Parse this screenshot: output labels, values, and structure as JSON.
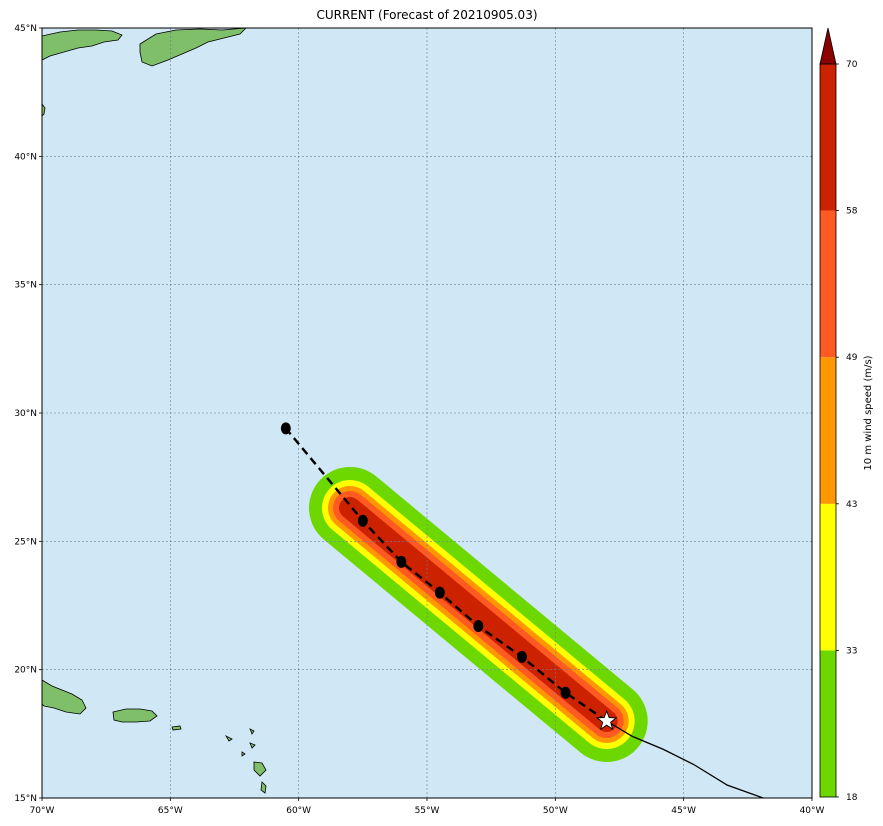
{
  "chart_data": {
    "type": "map",
    "title": "CURRENT (Forecast of 20210905.03)",
    "lon_range": [
      -70,
      -40
    ],
    "lat_range": [
      15,
      45
    ],
    "x_ticks": [
      {
        "v": -70,
        "label": "70°W"
      },
      {
        "v": -65,
        "label": "65°W"
      },
      {
        "v": -60,
        "label": "60°W"
      },
      {
        "v": -55,
        "label": "55°W"
      },
      {
        "v": -50,
        "label": "50°W"
      },
      {
        "v": -45,
        "label": "45°W"
      },
      {
        "v": -40,
        "label": "40°W"
      }
    ],
    "y_ticks": [
      {
        "v": 15,
        "label": "15°N"
      },
      {
        "v": 20,
        "label": "20°N"
      },
      {
        "v": 25,
        "label": "25°N"
      },
      {
        "v": 30,
        "label": "30°N"
      },
      {
        "v": 35,
        "label": "35°N"
      },
      {
        "v": 40,
        "label": "40°N"
      },
      {
        "v": 45,
        "label": "45°N"
      }
    ],
    "grid": true,
    "past_track": [
      {
        "lon": -48.0,
        "lat": 18.0
      },
      {
        "lon": -47.0,
        "lat": 17.4
      },
      {
        "lon": -45.8,
        "lat": 16.9
      },
      {
        "lon": -44.6,
        "lat": 16.3
      },
      {
        "lon": -43.3,
        "lat": 15.5
      },
      {
        "lon": -41.9,
        "lat": 15.0
      }
    ],
    "forecast_track": [
      {
        "lon": -48.0,
        "lat": 18.0
      },
      {
        "lon": -49.6,
        "lat": 19.1
      },
      {
        "lon": -51.3,
        "lat": 20.5
      },
      {
        "lon": -53.0,
        "lat": 21.7
      },
      {
        "lon": -54.5,
        "lat": 23.0
      },
      {
        "lon": -56.0,
        "lat": 24.2
      },
      {
        "lon": -57.5,
        "lat": 25.8
      },
      {
        "lon": -60.5,
        "lat": 29.4
      }
    ],
    "current_position": {
      "lon": -48.0,
      "lat": 18.0
    },
    "swath_extent_end": {
      "lon": -58.0,
      "lat": 26.3
    },
    "colorbar": {
      "label": "10 m wind speed (m/s)",
      "levels": [
        18,
        33,
        43,
        49,
        58,
        70
      ],
      "colors": [
        "#6dd800",
        "#ffff00",
        "#ff9800",
        "#ff5a22",
        "#cc2200"
      ],
      "extend_color": "#8b0000"
    },
    "colors": {
      "ocean": "#d0e7f5",
      "land": "#7fbf6a",
      "grid": "#6b8190"
    }
  }
}
